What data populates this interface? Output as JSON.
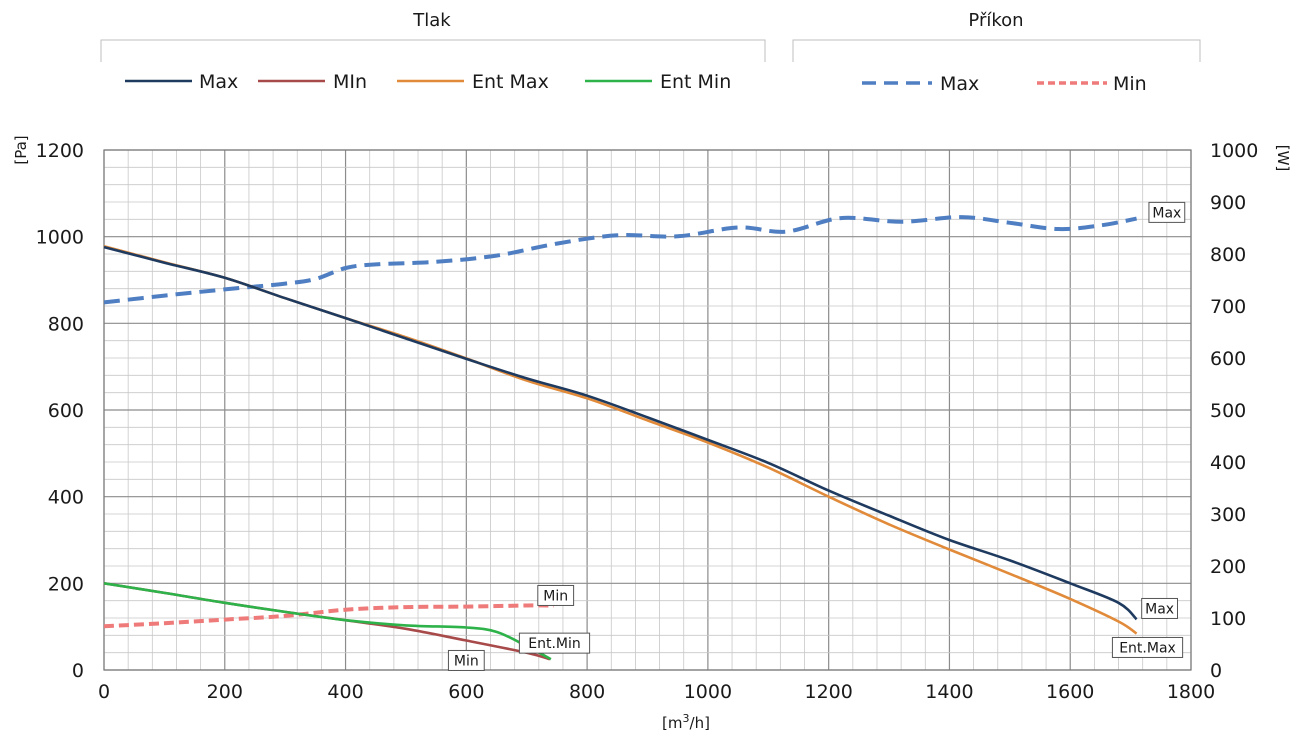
{
  "chart_data": {
    "type": "line",
    "legend_groups": [
      {
        "title": "Tlak",
        "entries": [
          "Max",
          "MIn",
          "Ent Max",
          "Ent Min"
        ]
      },
      {
        "title": "Příkon",
        "entries": [
          "Max",
          "Min"
        ]
      }
    ],
    "xlabel_main": "[m",
    "xlabel_sup": "3",
    "xlabel_tail": "/h]",
    "ylabel_left": "[Pa]",
    "ylabel_right": "[W]",
    "xlim": [
      0,
      1800
    ],
    "ylim_left": [
      0,
      1200
    ],
    "ylim_right": [
      0,
      1000
    ],
    "x_ticks": [
      0,
      200,
      400,
      600,
      800,
      1000,
      1200,
      1400,
      1600,
      1800
    ],
    "y_left_ticks": [
      0,
      200,
      400,
      600,
      800,
      1000,
      1200
    ],
    "y_right_ticks": [
      0,
      100,
      200,
      300,
      400,
      500,
      600,
      700,
      800,
      900,
      1000
    ],
    "grid": true,
    "series": [
      {
        "name": "Max",
        "axis": "left",
        "color": "#1f3a5f",
        "dash": "solid",
        "points": [
          [
            0,
            976
          ],
          [
            100,
            940
          ],
          [
            200,
            905
          ],
          [
            300,
            858
          ],
          [
            400,
            812
          ],
          [
            500,
            765
          ],
          [
            600,
            718
          ],
          [
            700,
            673
          ],
          [
            800,
            633
          ],
          [
            900,
            583
          ],
          [
            1000,
            531
          ],
          [
            1100,
            478
          ],
          [
            1200,
            414
          ],
          [
            1300,
            356
          ],
          [
            1400,
            300
          ],
          [
            1500,
            253
          ],
          [
            1600,
            200
          ],
          [
            1680,
            155
          ],
          [
            1710,
            117
          ]
        ]
      },
      {
        "name": "MIn",
        "axis": "left",
        "color": "#a84a4a",
        "dash": "solid",
        "points": [
          [
            0,
            200
          ],
          [
            100,
            178
          ],
          [
            200,
            155
          ],
          [
            300,
            134
          ],
          [
            400,
            115
          ],
          [
            500,
            95
          ],
          [
            600,
            68
          ],
          [
            700,
            40
          ],
          [
            738,
            25
          ]
        ]
      },
      {
        "name": "Ent Max",
        "axis": "left",
        "color": "#e08a3a",
        "dash": "solid",
        "points": [
          [
            0,
            978
          ],
          [
            100,
            941
          ],
          [
            200,
            905
          ],
          [
            300,
            858
          ],
          [
            400,
            812
          ],
          [
            500,
            768
          ],
          [
            600,
            719
          ],
          [
            700,
            668
          ],
          [
            800,
            627
          ],
          [
            900,
            576
          ],
          [
            1000,
            525
          ],
          [
            1100,
            467
          ],
          [
            1200,
            400
          ],
          [
            1300,
            336
          ],
          [
            1400,
            278
          ],
          [
            1500,
            222
          ],
          [
            1600,
            164
          ],
          [
            1680,
            112
          ],
          [
            1710,
            84
          ]
        ]
      },
      {
        "name": "Ent Min",
        "axis": "left",
        "color": "#2eb24a",
        "dash": "solid",
        "points": [
          [
            0,
            200
          ],
          [
            100,
            178
          ],
          [
            200,
            155
          ],
          [
            300,
            134
          ],
          [
            400,
            115
          ],
          [
            500,
            103
          ],
          [
            600,
            98
          ],
          [
            650,
            88
          ],
          [
            700,
            55
          ],
          [
            740,
            25
          ]
        ]
      },
      {
        "name": "Max",
        "axis": "right",
        "color": "#4f7fc2",
        "dash": "dashed",
        "points": [
          [
            0,
            707
          ],
          [
            100,
            720
          ],
          [
            200,
            732
          ],
          [
            300,
            743
          ],
          [
            350,
            752
          ],
          [
            400,
            773
          ],
          [
            450,
            780
          ],
          [
            550,
            785
          ],
          [
            650,
            797
          ],
          [
            750,
            820
          ],
          [
            850,
            836
          ],
          [
            950,
            834
          ],
          [
            1050,
            851
          ],
          [
            1130,
            843
          ],
          [
            1220,
            869
          ],
          [
            1320,
            862
          ],
          [
            1420,
            871
          ],
          [
            1500,
            860
          ],
          [
            1580,
            848
          ],
          [
            1650,
            855
          ],
          [
            1710,
            868
          ]
        ]
      },
      {
        "name": "Min",
        "axis": "right",
        "color": "#ef7a7a",
        "dash": "dashed",
        "points": [
          [
            0,
            84
          ],
          [
            100,
            90
          ],
          [
            200,
            97
          ],
          [
            300,
            104
          ],
          [
            400,
            116
          ],
          [
            500,
            121
          ],
          [
            600,
            122
          ],
          [
            700,
            124
          ],
          [
            745,
            124
          ]
        ]
      }
    ],
    "annotations": [
      {
        "text": "Max",
        "x": 1760,
        "y_right": 880
      },
      {
        "text": "Max",
        "x": 1748,
        "y_left": 142
      },
      {
        "text": "Ent.Max",
        "x": 1728,
        "y_left": 52
      },
      {
        "text": "Min",
        "x": 748,
        "y_left": 172
      },
      {
        "text": "Ent.Min",
        "x": 746,
        "y_left": 62
      },
      {
        "text": "Min",
        "x": 600,
        "y_left": 22
      }
    ]
  }
}
